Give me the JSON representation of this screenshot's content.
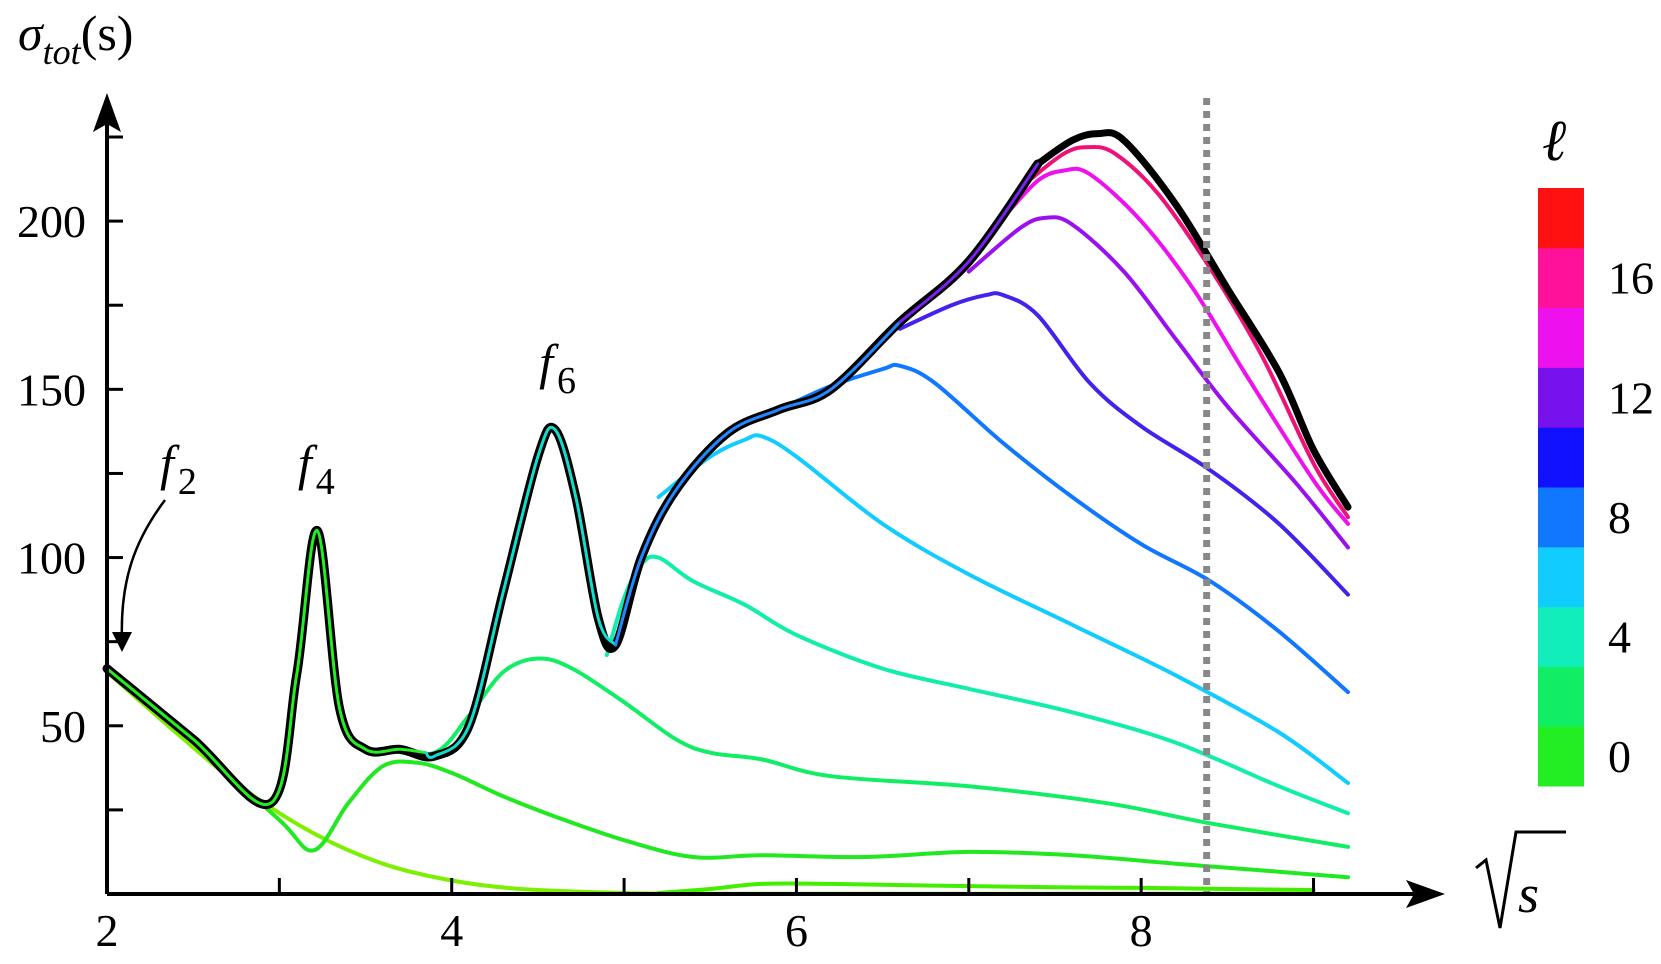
{
  "chart_data": {
    "type": "line",
    "title": "",
    "ylabel": "σtot(s)",
    "ylabel_parts": {
      "base": "σ",
      "sub": "tot",
      "arg": "(s)"
    },
    "xlabel": "√s",
    "xlabel_radicand": "s",
    "xlim": [
      2,
      9.2
    ],
    "ylim": [
      0,
      225
    ],
    "x_ticks": [
      2,
      4,
      6,
      8
    ],
    "x_tick_labels": [
      "2",
      "4",
      "6",
      "8"
    ],
    "y_ticks": [
      50,
      100,
      150,
      200
    ],
    "y_tick_labels": [
      "50",
      "100",
      "150",
      "200"
    ],
    "grid": false,
    "vertical_marker": {
      "x": 8.38,
      "style": "dotted",
      "color": "#888888"
    },
    "annotations": [
      {
        "base": "f",
        "sub": "2",
        "x": 2.4,
        "y": 123
      },
      {
        "base": "f",
        "sub": "4",
        "x": 3.2,
        "y": 123
      },
      {
        "base": "f",
        "sub": "6",
        "x": 4.6,
        "y": 153
      }
    ],
    "colorbar": {
      "label": "ℓ",
      "tick_labels": [
        "0",
        "4",
        "8",
        "12",
        "16"
      ],
      "tick_values": [
        0,
        4,
        8,
        12,
        16
      ],
      "range": [
        -1,
        19
      ],
      "colors": [
        "#22ee22",
        "#11ee66",
        "#11eebb",
        "#11ccff",
        "#1177ff",
        "#1111ff",
        "#7711ee",
        "#ee11ee",
        "#ff1199",
        "#ff1111"
      ]
    },
    "series": [
      {
        "color": "#7cf000",
        "width": 4,
        "x": [
          2,
          2.4,
          2.8,
          3.2,
          3.6,
          4.0,
          4.4,
          5.0,
          5.5,
          6.0,
          7.0,
          8.0,
          9.0
        ],
        "y": [
          66,
          48,
          31,
          18,
          9,
          4,
          1.5,
          0.3,
          0.1,
          0.1,
          0.1,
          0.1,
          0.1
        ]
      },
      {
        "color": "#44ee00",
        "width": 4,
        "x": [
          5.2,
          5.5,
          5.8,
          6.2,
          6.8,
          7.5,
          8.0,
          8.5,
          9.0
        ],
        "y": [
          0.3,
          1.5,
          3,
          3,
          2.5,
          2,
          1.8,
          1.5,
          1.2
        ]
      },
      {
        "color": "#22e822",
        "width": 4,
        "x": [
          2,
          2.5,
          3.0,
          3.2,
          3.4,
          3.6,
          3.8,
          4.0,
          4.3,
          4.6,
          5.0,
          5.4,
          5.8,
          6.4,
          7.0,
          7.6,
          8.2,
          8.7,
          9.2
        ],
        "y": [
          67,
          45,
          22,
          13,
          27,
          38,
          39,
          36,
          29,
          23,
          16,
          11,
          11.5,
          11,
          12.5,
          11.5,
          9,
          7,
          5
        ]
      },
      {
        "color": "#11ee66",
        "width": 4,
        "x": [
          3.6,
          3.9,
          4.1,
          4.3,
          4.5,
          4.7,
          5.0,
          5.3,
          5.5,
          5.8,
          6.2,
          7.0,
          7.8,
          8.4,
          9.2
        ],
        "y": [
          43,
          42,
          53,
          66,
          70,
          67,
          57,
          46,
          42,
          40,
          35,
          32,
          27,
          21,
          14
        ]
      },
      {
        "color": "#11eeaa",
        "width": 4,
        "x": [
          4.9,
          5.0,
          5.1,
          5.2,
          5.4,
          5.7,
          6.0,
          6.5,
          7.0,
          7.6,
          8.2,
          8.8,
          9.2
        ],
        "y": [
          71,
          88,
          98,
          100,
          93,
          86,
          77,
          67,
          61,
          54,
          45,
          32,
          24
        ]
      },
      {
        "color": "#11ccff",
        "width": 4,
        "x": [
          5.2,
          5.5,
          5.7,
          5.8,
          6.0,
          6.5,
          7.0,
          7.6,
          8.2,
          8.8,
          9.2
        ],
        "y": [
          118,
          130,
          135,
          136,
          130,
          110,
          95,
          80,
          65,
          48,
          33
        ]
      },
      {
        "color": "#1177ff",
        "width": 4,
        "x": [
          5.9,
          6.2,
          6.5,
          6.6,
          6.8,
          7.2,
          7.6,
          8.0,
          8.4,
          8.8,
          9.2
        ],
        "y": [
          144,
          151,
          156,
          157,
          152,
          134,
          118,
          104,
          93,
          78,
          60
        ]
      },
      {
        "color": "#4422ee",
        "width": 4,
        "x": [
          6.6,
          6.9,
          7.1,
          7.2,
          7.4,
          7.7,
          8.0,
          8.4,
          8.8,
          9.2
        ],
        "y": [
          168,
          175,
          178,
          178,
          172,
          152,
          139,
          126,
          110,
          89
        ]
      },
      {
        "color": "#9911ee",
        "width": 4,
        "x": [
          7.0,
          7.3,
          7.45,
          7.6,
          7.9,
          8.2,
          8.5,
          8.9,
          9.2
        ],
        "y": [
          185,
          198,
          201,
          199,
          185,
          165,
          145,
          122,
          103
        ]
      },
      {
        "color": "#ee11ee",
        "width": 4,
        "x": [
          7.2,
          7.4,
          7.55,
          7.7,
          8.0,
          8.3,
          8.6,
          9.0,
          9.2
        ],
        "y": [
          201,
          212,
          215,
          214,
          200,
          180,
          155,
          123,
          110
        ]
      },
      {
        "color": "#ee1177",
        "width": 4,
        "x": [
          7.3,
          7.55,
          7.7,
          7.85,
          8.1,
          8.4,
          8.7,
          9.0,
          9.2
        ],
        "y": [
          210,
          220,
          222,
          220,
          208,
          186,
          160,
          128,
          112
        ]
      },
      {
        "color": "#000000",
        "width": 7,
        "x": [
          7.4,
          7.6,
          7.75,
          7.9,
          8.2,
          8.5,
          8.8,
          9.0,
          9.2
        ],
        "y": [
          217,
          224,
          226,
          224,
          205,
          180,
          155,
          132,
          115
        ]
      },
      {
        "color": "#000000",
        "width": 9,
        "x": [
          2.0,
          2.5,
          2.95,
          3.1,
          3.22,
          3.35,
          3.5,
          3.7,
          3.9,
          4.1,
          4.3,
          4.5,
          4.6,
          4.72,
          4.85,
          4.95,
          5.1,
          5.3,
          5.6,
          5.9,
          6.2,
          6.6,
          7.0,
          7.4
        ],
        "y": [
          67,
          46,
          27,
          65,
          108,
          55,
          43,
          43,
          41,
          50,
          90,
          130,
          138,
          118,
          82,
          74,
          100,
          120,
          137,
          144,
          150,
          170,
          188,
          217
        ]
      },
      {
        "color": "#22ee22",
        "width": 3,
        "x": [
          2.0,
          2.5,
          2.95,
          3.1,
          3.22,
          3.35,
          3.5,
          3.7,
          3.85
        ],
        "y": [
          67,
          46,
          27,
          65,
          108,
          55,
          43,
          43,
          42
        ]
      },
      {
        "color": "#11ddcc",
        "width": 3,
        "x": [
          3.85,
          3.9,
          4.1,
          4.3,
          4.5,
          4.6,
          4.72,
          4.85,
          4.95
        ],
        "y": [
          42,
          41,
          50,
          90,
          130,
          138,
          118,
          82,
          74
        ]
      },
      {
        "color": "#2288ff",
        "width": 3,
        "x": [
          4.95,
          5.1,
          5.3,
          5.6,
          5.9,
          6.2,
          6.6
        ],
        "y": [
          74,
          100,
          120,
          137,
          144,
          150,
          170
        ]
      },
      {
        "color": "#7722ee",
        "width": 3,
        "x": [
          6.6,
          7.0,
          7.4
        ],
        "y": [
          170,
          188,
          217
        ]
      }
    ]
  }
}
